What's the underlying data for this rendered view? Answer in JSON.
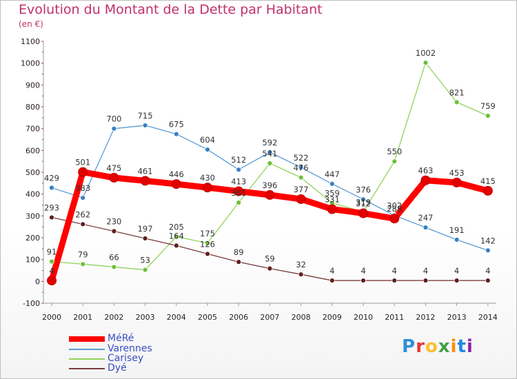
{
  "header": {
    "title": "Evolution du Montant de la Dette par Habitant",
    "subtitle": "(en €)"
  },
  "chart_data": {
    "type": "line",
    "title": "Evolution du Montant de la Dette par Habitant",
    "subtitle": "(en €)",
    "x": [
      "2000",
      "2001",
      "2002",
      "2003",
      "2004",
      "2005",
      "2006",
      "2007",
      "2008",
      "2009",
      "2010",
      "2011",
      "2012",
      "2013",
      "2014"
    ],
    "ylim": [
      -100,
      1100
    ],
    "yticks": [
      "-100",
      "0",
      "100",
      "200",
      "300",
      "400",
      "500",
      "600",
      "700",
      "800",
      "900",
      "1000",
      "1100"
    ],
    "grid": false,
    "legend_position": "bottom-left",
    "series": [
      {
        "name": "Varennes",
        "color": "#5b9bd5",
        "point_color": "#3a7fc1",
        "values": [
          429,
          383,
          700,
          715,
          675,
          604,
          512,
          592,
          522,
          447,
          376,
          302,
          247,
          191,
          142
        ]
      },
      {
        "name": "Carisey",
        "color": "#8fd45a",
        "point_color": "#6cc036",
        "values": [
          91,
          79,
          66,
          53,
          205,
          175,
          361,
          541,
          476,
          359,
          319,
          550,
          1002,
          821,
          759
        ]
      },
      {
        "name": "Dyé",
        "color": "#7a3b3b",
        "point_color": "#5e1f1f",
        "values": [
          293,
          262,
          230,
          197,
          164,
          126,
          89,
          59,
          32,
          4,
          4,
          4,
          4,
          4,
          4
        ]
      },
      {
        "name": "MéRé",
        "color": "#ff0000",
        "point_color": "#e10000",
        "values": [
          4,
          501,
          475,
          461,
          446,
          430,
          413,
          396,
          377,
          331,
          312,
          288,
          463,
          453,
          415
        ]
      }
    ],
    "legend_order": [
      "MéRé",
      "Varennes",
      "Carisey",
      "Dyé"
    ]
  },
  "legend": {
    "items": [
      {
        "label": "MéRé",
        "color": "#ff0000"
      },
      {
        "label": "Varennes",
        "color": "#5b9bd5"
      },
      {
        "label": "Carisey",
        "color": "#8fd45a"
      },
      {
        "label": "Dyé",
        "color": "#7a3b3b"
      }
    ]
  },
  "logo": {
    "text": "Proxiti"
  }
}
